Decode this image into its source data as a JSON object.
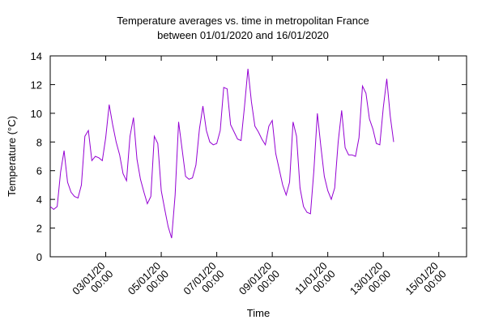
{
  "chart_data": {
    "type": "line",
    "title": "Temperature averages vs. time in metropolitan France",
    "subtitle": "between 01/01/2020 and 16/01/2020",
    "xlabel": "Time",
    "ylabel": "Temperature (°C)",
    "ylim": [
      0,
      14
    ],
    "y_ticks": [
      0,
      2,
      4,
      6,
      8,
      10,
      12,
      14
    ],
    "xlim": [
      "01/01/2020 00:00",
      "16/01/2020 00:00"
    ],
    "x_ticks": [
      {
        "date": "03/01/20",
        "time": "00:00"
      },
      {
        "date": "05/01/20",
        "time": "00:00"
      },
      {
        "date": "07/01/20",
        "time": "00:00"
      },
      {
        "date": "09/01/20",
        "time": "00:00"
      },
      {
        "date": "11/01/20",
        "time": "00:00"
      },
      {
        "date": "13/01/20",
        "time": "00:00"
      },
      {
        "date": "15/01/20",
        "time": "00:00"
      }
    ],
    "line_color": "#9400d3",
    "grid": false,
    "legend": "none",
    "series": [
      {
        "x_start": "01/01/2020 00:00",
        "x_step_hours": 3,
        "values": [
          3.5,
          3.3,
          3.5,
          5.9,
          7.4,
          5.2,
          4.5,
          4.2,
          4.1,
          5.0,
          8.4,
          8.8,
          6.7,
          7.0,
          6.9,
          6.7,
          8.3,
          10.6,
          9.2,
          8.0,
          7.1,
          5.8,
          5.3,
          8.4,
          9.7,
          6.8,
          5.4,
          4.5,
          3.7,
          4.2,
          8.4,
          7.9,
          4.6,
          3.3,
          2.1,
          1.3,
          4.3,
          9.4,
          7.5,
          5.6,
          5.4,
          5.5,
          6.4,
          8.9,
          10.5,
          8.8,
          8.0,
          7.8,
          7.9,
          8.8,
          11.8,
          11.7,
          9.2,
          8.7,
          8.2,
          8.1,
          10.5,
          13.1,
          10.8,
          9.1,
          8.7,
          8.2,
          7.8,
          9.1,
          9.5,
          7.2,
          6.1,
          5.0,
          4.3,
          5.2,
          9.4,
          8.4,
          4.8,
          3.5,
          3.1,
          3.0,
          6.0,
          10.0,
          7.7,
          5.6,
          4.6,
          4.0,
          4.8,
          8.0,
          10.2,
          7.6,
          7.1,
          7.1,
          7.0,
          8.3,
          11.9,
          11.4,
          9.6,
          8.9,
          7.9,
          7.8,
          10.4,
          12.4,
          9.8,
          8.0
        ]
      }
    ]
  }
}
